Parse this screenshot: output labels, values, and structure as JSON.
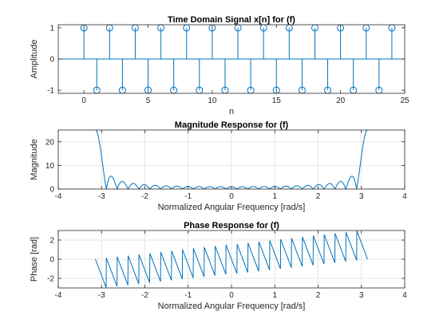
{
  "chart_data": [
    {
      "type": "stem",
      "title": "Time Domain Signal x[n] for (f)",
      "xlabel": "n",
      "ylabel": "Amplitude",
      "xlim": [
        -2,
        25
      ],
      "ylim": [
        -1.1,
        1.1
      ],
      "xticks": [
        0,
        5,
        10,
        15,
        20,
        25
      ],
      "yticks": [
        -1,
        0,
        1
      ],
      "grid": false,
      "n": [
        0,
        1,
        2,
        3,
        4,
        5,
        6,
        7,
        8,
        9,
        10,
        11,
        12,
        13,
        14,
        15,
        16,
        17,
        18,
        19,
        20,
        21,
        22,
        23,
        24
      ],
      "values": [
        1,
        -1,
        1,
        -1,
        1,
        -1,
        1,
        -1,
        1,
        -1,
        1,
        -1,
        1,
        -1,
        1,
        -1,
        1,
        -1,
        1,
        -1,
        1,
        -1,
        1,
        -1,
        1
      ],
      "color": "#0072BD"
    },
    {
      "type": "line",
      "title": "Magnitude Response for (f)",
      "xlabel": "Normalized Angular Frequency [rad/s]",
      "ylabel": "Magnitude",
      "xlim": [
        -4,
        4
      ],
      "ylim": [
        0,
        25
      ],
      "xticks": [
        -4,
        -3,
        -2,
        -1,
        0,
        1,
        2,
        3,
        4
      ],
      "yticks": [
        0,
        10,
        20
      ],
      "grid": true,
      "function": "abs(sum_{n=0}^{24} (-1)^n e^{-jwn})",
      "domain": [
        -3.14159,
        3.14159
      ],
      "color": "#0072BD"
    },
    {
      "type": "line",
      "title": "Phase Response for (f)",
      "xlabel": "Normalized Angular Frequency [rad/s]",
      "ylabel": "Phase [rad]",
      "xlim": [
        -4,
        4
      ],
      "ylim": [
        -3,
        3
      ],
      "xticks": [
        -4,
        -3,
        -2,
        -1,
        0,
        1,
        2,
        3,
        4
      ],
      "yticks": [
        -2,
        0,
        2
      ],
      "grid": true,
      "function": "angle(sum_{n=0}^{24} (-1)^n e^{-jwn})",
      "domain": [
        -3.14159,
        3.14159
      ],
      "color": "#0072BD"
    }
  ]
}
